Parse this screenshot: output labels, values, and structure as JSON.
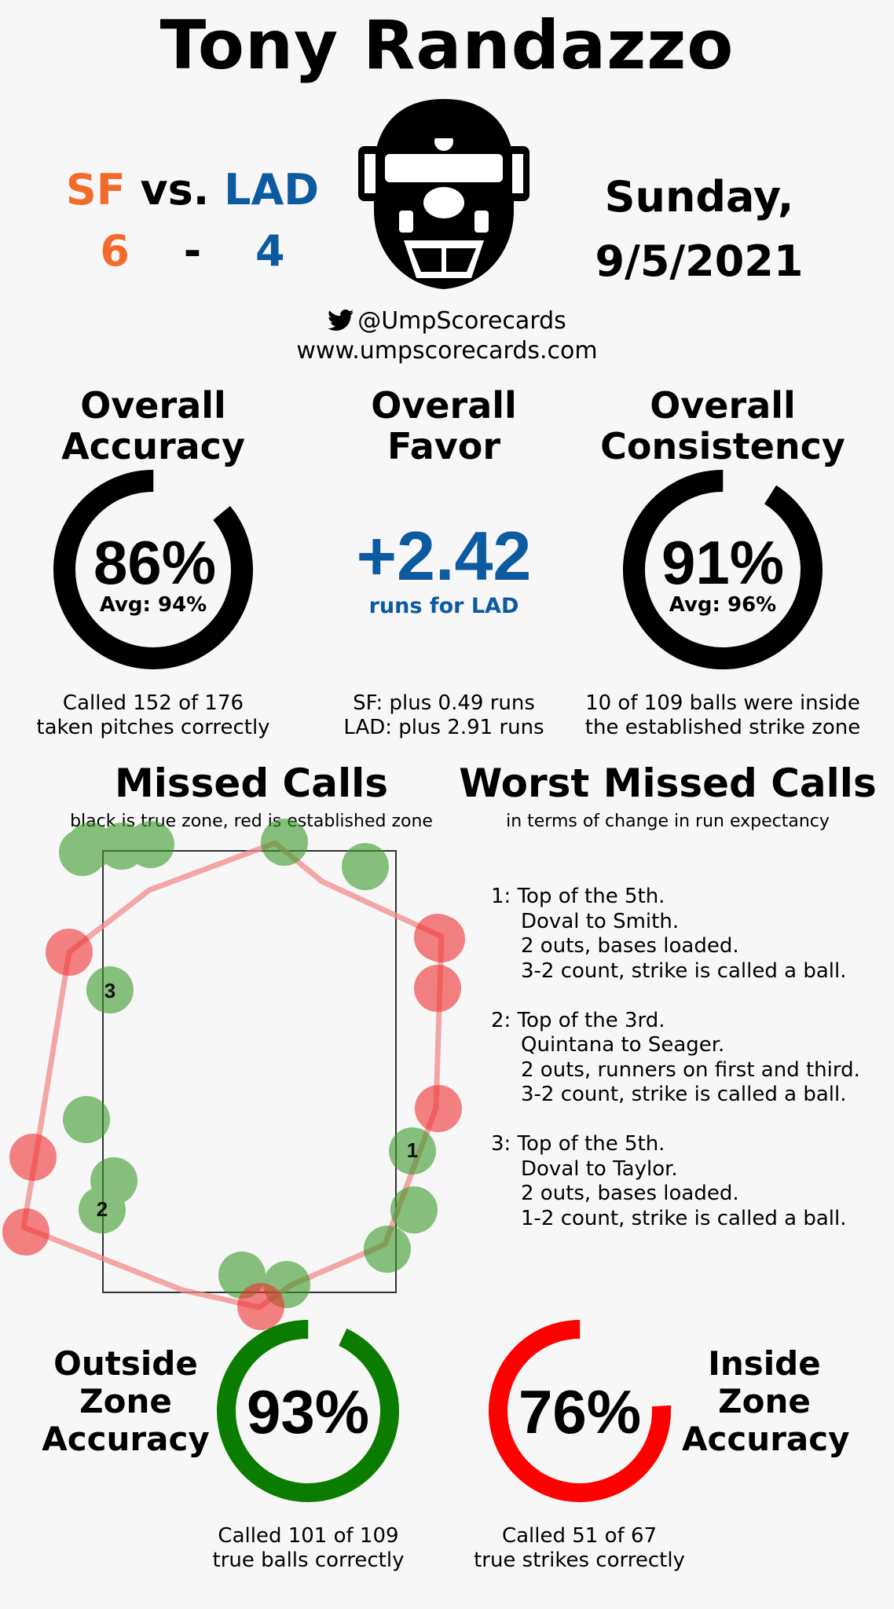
{
  "header": {
    "umpire_name": "Tony Randazzo",
    "away_team": "SF",
    "vs": "vs.",
    "home_team": "LAD",
    "away_score": "6",
    "dash": "-",
    "home_score": "4",
    "day": "Sunday,",
    "date": "9/5/2021",
    "twitter_handle": "@UmpScorecards",
    "website": "www.umpscorecards.com"
  },
  "colors": {
    "sf": "#f26b2a",
    "lad": "#0c5aa0",
    "green": "#0a7d00",
    "red": "#ff0000",
    "black": "#000000"
  },
  "accuracy": {
    "title_line1": "Overall",
    "title_line2": "Accuracy",
    "value": "86%",
    "avg": "Avg: 94%",
    "fraction": 0.86,
    "caption_line1": "Called 152 of 176",
    "caption_line2": "taken pitches correctly"
  },
  "favor": {
    "title_line1": "Overall",
    "title_line2": "Favor",
    "value": "+2.42",
    "sub": "runs for LAD",
    "caption_line1": "SF: plus 0.49 runs",
    "caption_line2": "LAD: plus 2.91 runs"
  },
  "consistency": {
    "title_line1": "Overall",
    "title_line2": "Consistency",
    "value": "91%",
    "avg": "Avg: 96%",
    "fraction": 0.91,
    "caption_line1": "10 of 109 balls were inside",
    "caption_line2": "the established strike zone"
  },
  "missed_calls": {
    "title": "Missed Calls",
    "subtitle": "black is true zone, red is established zone",
    "labels": [
      "3",
      "1",
      "2"
    ]
  },
  "worst_missed": {
    "title": "Worst Missed Calls",
    "subtitle": "in terms of change in run expectancy",
    "items": [
      {
        "header": "1: Top of the 5th.",
        "lines": [
          "Doval to Smith.",
          "2 outs, bases loaded.",
          "3-2 count, strike is called a ball."
        ]
      },
      {
        "header": "2: Top of the 3rd.",
        "lines": [
          "Quintana to Seager.",
          "2 outs, runners on first and third.",
          "3-2 count, strike is called a ball."
        ]
      },
      {
        "header": "3: Top of the 5th.",
        "lines": [
          "Doval to Taylor.",
          "2 outs, bases loaded.",
          "1-2 count, strike is called a ball."
        ]
      }
    ]
  },
  "outside_zone": {
    "title_line1": "Outside",
    "title_line2": "Zone",
    "title_line3": "Accuracy",
    "value": "93%",
    "fraction": 0.93,
    "caption_line1": "Called 101 of 109",
    "caption_line2": "true balls correctly"
  },
  "inside_zone": {
    "title_line1": "Inside",
    "title_line2": "Zone",
    "title_line3": "Accuracy",
    "value": "76%",
    "fraction": 0.76,
    "caption_line1": "Called 51 of 67",
    "caption_line2": "true strikes correctly"
  }
}
